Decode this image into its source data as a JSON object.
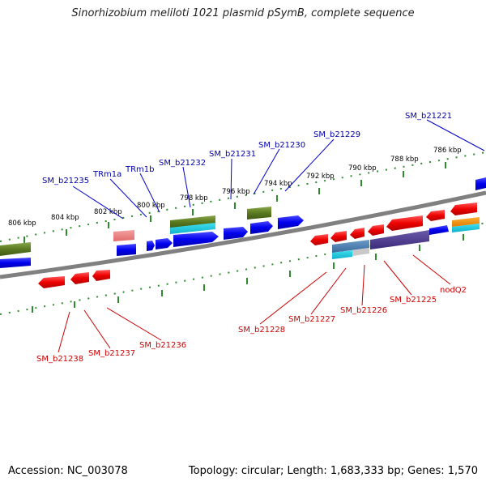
{
  "title": "Sinorhizobium meliloti 1021 plasmid pSymB, complete sequence",
  "footer": {
    "accession": "Accession: NC_003078",
    "summary": "Topology: circular; Length: 1,683,333 bp; Genes: 1,570"
  },
  "scale_labels": [
    "806 kbp",
    "804 kbp",
    "802 kbp",
    "800 kbp",
    "798 kbp",
    "796 kbp",
    "794 kbp",
    "792 kbp",
    "790 kbp",
    "788 kbp",
    "786 kbp"
  ],
  "top_labels": [
    "SM_b21235",
    "TRm1a",
    "TRm1b",
    "SM_b21232",
    "SM_b21231",
    "SM_b21230",
    "SM_b21229",
    "SM_b21221"
  ],
  "bottom_labels": [
    "SM_b21238",
    "SM_b21237",
    "SM_b21236",
    "SM_b21228",
    "SM_b21227",
    "SM_b21226",
    "SM_b21225",
    "nodQ2"
  ],
  "colors": {
    "forward_cds": "#0000ee",
    "reverse_cds": "#ee0000",
    "forward_label": "#0000aa",
    "reverse_label": "#cc0000",
    "gene_feature": "#5a7a20",
    "backbone": "#707070",
    "ruler": "#2e8b2e"
  }
}
